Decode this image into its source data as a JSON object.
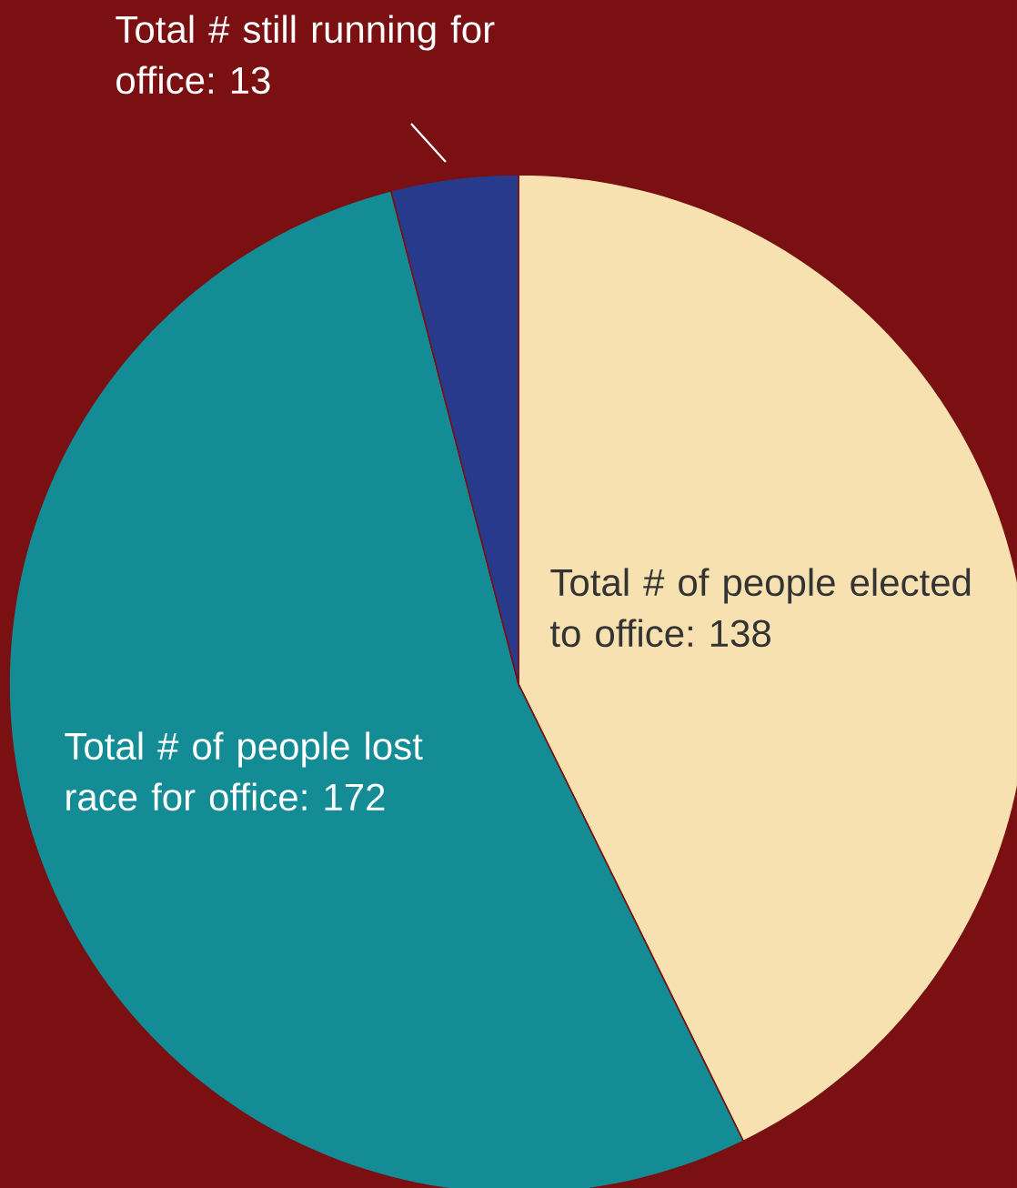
{
  "chart_data": {
    "type": "pie",
    "categories": [
      "Total # of people elected to office",
      "Total # of people lost race for office",
      "Total # still running for office"
    ],
    "values": [
      138,
      172,
      13
    ],
    "colors": [
      "#f7e1b0",
      "#148c96",
      "#283a8c"
    ],
    "value_labels": [
      ": 138",
      ": 172",
      ": 13"
    ]
  }
}
